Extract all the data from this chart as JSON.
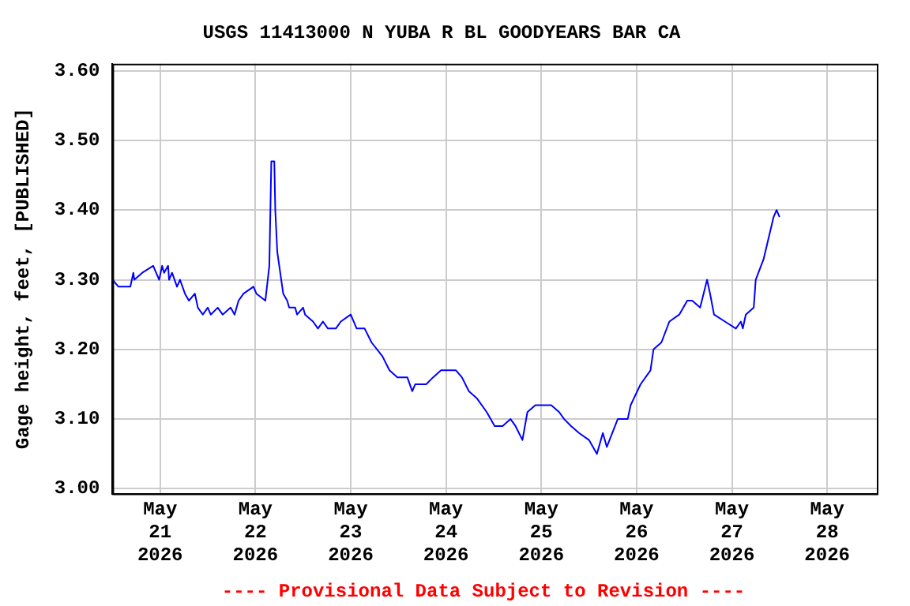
{
  "chart_data": {
    "type": "line",
    "title": "USGS 11413000 N YUBA R BL GOODYEARS BAR CA",
    "ylabel": "Gage height, feet, [PUBLISHED]",
    "annotations": [
      "---- Provisional Data Subject to Revision ----"
    ],
    "series": [
      {
        "color": "#0000ff",
        "x": [
          "2026-05-20T12:00",
          "2026-05-20T13:30",
          "2026-05-20T16:30",
          "2026-05-20T17:15",
          "2026-05-20T17:30",
          "2026-05-20T19:30",
          "2026-05-20T22:15",
          "2026-05-20T23:45",
          "2026-05-21T00:30",
          "2026-05-21T01:00",
          "2026-05-21T02:00",
          "2026-05-21T02:15",
          "2026-05-21T03:00",
          "2026-05-21T04:15",
          "2026-05-21T05:00",
          "2026-05-21T06:15",
          "2026-05-21T07:15",
          "2026-05-21T08:45",
          "2026-05-21T09:30",
          "2026-05-21T10:45",
          "2026-05-21T12:00",
          "2026-05-21T12:45",
          "2026-05-21T14:30",
          "2026-05-21T15:45",
          "2026-05-21T17:45",
          "2026-05-21T18:45",
          "2026-05-21T19:45",
          "2026-05-21T21:00",
          "2026-05-21T23:30",
          "2026-05-22T00:15",
          "2026-05-22T02:30",
          "2026-05-22T03:30",
          "2026-05-22T04:00",
          "2026-05-22T04:45",
          "2026-05-22T05:00",
          "2026-05-22T05:30",
          "2026-05-22T06:00",
          "2026-05-22T06:30",
          "2026-05-22T07:00",
          "2026-05-22T08:00",
          "2026-05-22T08:30",
          "2026-05-22T10:00",
          "2026-05-22T10:30",
          "2026-05-22T12:00",
          "2026-05-22T12:30",
          "2026-05-22T14:30",
          "2026-05-22T15:45",
          "2026-05-22T17:00",
          "2026-05-22T18:15",
          "2026-05-22T20:15",
          "2026-05-22T21:30",
          "2026-05-23T00:00",
          "2026-05-23T01:30",
          "2026-05-23T03:30",
          "2026-05-23T05:15",
          "2026-05-23T08:00",
          "2026-05-23T09:45",
          "2026-05-23T11:45",
          "2026-05-23T14:15",
          "2026-05-23T15:30",
          "2026-05-23T16:15",
          "2026-05-23T19:00",
          "2026-05-23T20:45",
          "2026-05-23T22:45",
          "2026-05-24T02:30",
          "2026-05-24T04:00",
          "2026-05-24T05:45",
          "2026-05-24T07:45",
          "2026-05-24T10:15",
          "2026-05-24T12:15",
          "2026-05-24T14:15",
          "2026-05-24T16:15",
          "2026-05-24T17:30",
          "2026-05-24T19:15",
          "2026-05-24T20:30",
          "2026-05-24T22:30",
          "2026-05-25T02:30",
          "2026-05-25T04:30",
          "2026-05-25T05:45",
          "2026-05-25T07:30",
          "2026-05-25T09:30",
          "2026-05-25T12:00",
          "2026-05-25T14:00",
          "2026-05-25T15:30",
          "2026-05-25T16:30",
          "2026-05-25T19:15",
          "2026-05-25T21:45",
          "2026-05-25T22:30",
          "2026-05-26T01:00",
          "2026-05-26T03:30",
          "2026-05-26T04:15",
          "2026-05-26T06:15",
          "2026-05-26T08:15",
          "2026-05-26T10:45",
          "2026-05-26T12:45",
          "2026-05-26T14:00",
          "2026-05-26T16:00",
          "2026-05-26T17:45",
          "2026-05-26T18:30",
          "2026-05-26T19:30",
          "2026-05-26T22:15",
          "2026-05-27T01:00",
          "2026-05-27T02:15",
          "2026-05-27T02:45",
          "2026-05-27T03:30",
          "2026-05-27T05:30",
          "2026-05-27T06:00",
          "2026-05-27T08:00",
          "2026-05-27T09:15",
          "2026-05-27T10:30",
          "2026-05-27T11:15",
          "2026-05-27T12:00"
        ],
        "values": [
          3.3,
          3.29,
          3.29,
          3.31,
          3.3,
          3.31,
          3.32,
          3.3,
          3.32,
          3.31,
          3.32,
          3.3,
          3.31,
          3.29,
          3.3,
          3.28,
          3.27,
          3.28,
          3.26,
          3.25,
          3.26,
          3.25,
          3.26,
          3.25,
          3.26,
          3.25,
          3.27,
          3.28,
          3.29,
          3.28,
          3.27,
          3.32,
          3.47,
          3.47,
          3.4,
          3.34,
          3.32,
          3.3,
          3.28,
          3.27,
          3.26,
          3.26,
          3.25,
          3.26,
          3.25,
          3.24,
          3.23,
          3.24,
          3.23,
          3.23,
          3.24,
          3.25,
          3.23,
          3.23,
          3.21,
          3.19,
          3.17,
          3.16,
          3.16,
          3.14,
          3.15,
          3.15,
          3.16,
          3.17,
          3.17,
          3.16,
          3.14,
          3.13,
          3.11,
          3.09,
          3.09,
          3.1,
          3.09,
          3.07,
          3.11,
          3.12,
          3.12,
          3.11,
          3.1,
          3.09,
          3.08,
          3.07,
          3.05,
          3.08,
          3.06,
          3.1,
          3.1,
          3.12,
          3.15,
          3.17,
          3.2,
          3.21,
          3.24,
          3.25,
          3.27,
          3.27,
          3.26,
          3.3,
          3.28,
          3.25,
          3.24,
          3.23,
          3.24,
          3.23,
          3.25,
          3.26,
          3.3,
          3.33,
          3.36,
          3.39,
          3.4,
          3.39
        ]
      }
    ],
    "xlim": [
      "2026-05-20T12:00",
      "2026-05-28T12:30"
    ],
    "xticks": [
      {
        "value": "2026-05-21",
        "label": "May 21 2026"
      },
      {
        "value": "2026-05-22",
        "label": "May 22 2026"
      },
      {
        "value": "2026-05-23",
        "label": "May 23 2026"
      },
      {
        "value": "2026-05-24",
        "label": "May 24 2026"
      },
      {
        "value": "2026-05-25",
        "label": "May 25 2026"
      },
      {
        "value": "2026-05-26",
        "label": "May 26 2026"
      },
      {
        "value": "2026-05-27",
        "label": "May 27 2026"
      },
      {
        "value": "2026-05-28",
        "label": "May 28 2026"
      }
    ],
    "ylim": [
      2.993,
      3.61
    ],
    "yticks": [
      {
        "value": 3.0,
        "label": "3.00"
      },
      {
        "value": 3.1,
        "label": "3.10"
      },
      {
        "value": 3.2,
        "label": "3.20"
      },
      {
        "value": 3.3,
        "label": "3.30"
      },
      {
        "value": 3.4,
        "label": "3.40"
      },
      {
        "value": 3.5,
        "label": "3.50"
      },
      {
        "value": 3.6,
        "label": "3.60"
      }
    ],
    "grid": true
  }
}
